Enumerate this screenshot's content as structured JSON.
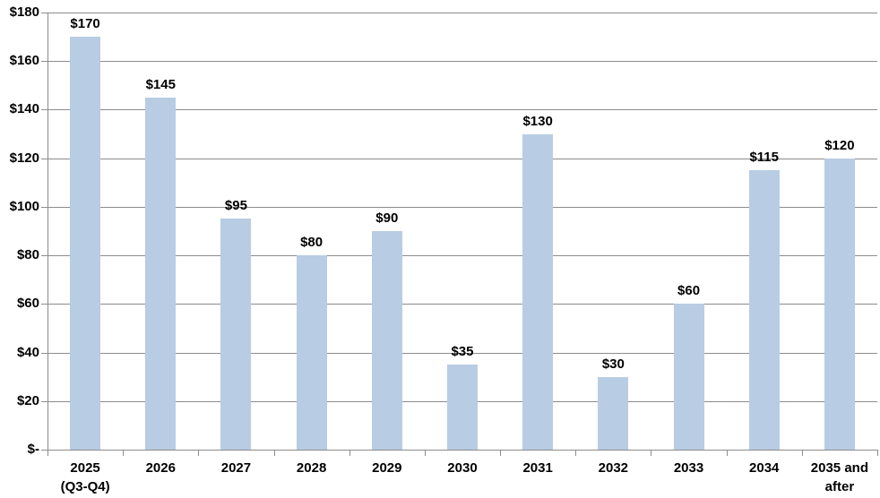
{
  "chart_data": {
    "type": "bar",
    "title": "",
    "xlabel": "",
    "ylabel": "",
    "categories": [
      "2025\n(Q3-Q4)",
      "2026",
      "2027",
      "2028",
      "2029",
      "2030",
      "2031",
      "2032",
      "2033",
      "2034",
      "2035 and\nafter"
    ],
    "values": [
      170,
      145,
      95,
      80,
      90,
      35,
      130,
      30,
      60,
      115,
      120
    ],
    "bar_labels": [
      "$170",
      "$145",
      "$95",
      "$80",
      "$90",
      "$35",
      "$130",
      "$30",
      "$60",
      "$115",
      "$120"
    ],
    "y_tick_labels": [
      "$-",
      "$20",
      "$40",
      "$60",
      "$80",
      "$100",
      "$120",
      "$140",
      "$160",
      "$180"
    ],
    "y_tick_values": [
      0,
      20,
      40,
      60,
      80,
      100,
      120,
      140,
      160,
      180
    ],
    "ylim": [
      0,
      180
    ],
    "grid": true,
    "legend": "none",
    "colors": {
      "bar_fill": "#B8CCE4",
      "gridline": "#8C8C8C",
      "axis": "#8C8C8C",
      "text": "#000000",
      "background": "#FFFFFF"
    }
  }
}
